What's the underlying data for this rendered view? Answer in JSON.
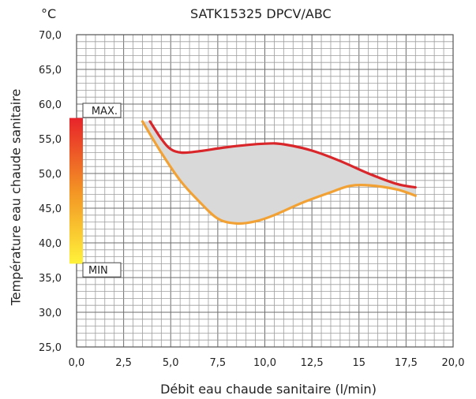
{
  "chart_data": {
    "type": "area",
    "title": "SATK15325 DPCV/ABC",
    "y_unit": "°C",
    "xlabel": "Débit eau chaude sanitaire (l/min)",
    "ylabel": "Température eau chaude sanitaire",
    "xlim": [
      0,
      20
    ],
    "ylim": [
      25,
      70
    ],
    "x_ticks": [
      "0,0",
      "2,5",
      "5,0",
      "7,5",
      "10,0",
      "12,5",
      "15",
      "17,5",
      "20,0"
    ],
    "y_ticks": [
      "25,0",
      "30,0",
      "35,0",
      "40,0",
      "45,0",
      "50,0",
      "55,0",
      "60,0",
      "65,0",
      "70,0"
    ],
    "grid": true,
    "series": [
      {
        "color": "#d9262b",
        "x": [
          3.9,
          4.5,
          5.0,
          5.6,
          6.5,
          8.0,
          10.0,
          11.0,
          12.5,
          14.0,
          15.5,
          17.0,
          18.0
        ],
        "y": [
          57.5,
          55.0,
          53.5,
          53.0,
          53.2,
          53.8,
          54.3,
          54.2,
          53.3,
          51.8,
          50.0,
          48.5,
          48.0
        ]
      },
      {
        "color": "#f2a234",
        "x": [
          3.5,
          4.5,
          5.5,
          6.5,
          7.5,
          8.5,
          9.5,
          10.5,
          12.0,
          13.5,
          14.5,
          15.5,
          17.0,
          18.0
        ],
        "y": [
          57.5,
          53.0,
          49.0,
          46.0,
          43.5,
          42.8,
          43.1,
          44.0,
          45.8,
          47.3,
          48.2,
          48.3,
          47.7,
          46.8
        ]
      }
    ],
    "range_bar": {
      "from": 37,
      "to": 58,
      "max_label": "MAX.",
      "min_label": "MIN",
      "color_top": "#e8232a",
      "color_mid": "#f39324",
      "color_bottom": "#fff23a"
    },
    "fill_color": "#d9d9d9"
  }
}
